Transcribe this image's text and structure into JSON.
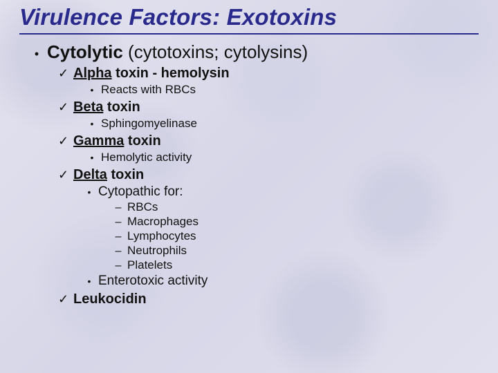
{
  "colors": {
    "title": "#2a2a8c",
    "underline": "#2a2a8c",
    "text": "#111111",
    "bg_base": "#e0e0ee"
  },
  "title": "Virulence Factors: Exotoxins",
  "l1": {
    "bullet": "•",
    "bold": "Cytolytic",
    "rest": " (cytotoxins; cytolysins)"
  },
  "check": "✓",
  "dot": "•",
  "dash": "–",
  "items": {
    "alpha": {
      "u": "Alpha",
      "rest": " toxin - hemolysin",
      "sub": "Reacts with RBCs"
    },
    "beta": {
      "u": "Beta",
      "rest": " toxin",
      "sub": "Sphingomyelinase"
    },
    "gamma": {
      "u": "Gamma",
      "rest": " toxin",
      "sub": "Hemolytic activity"
    },
    "delta": {
      "u": "Delta",
      "rest": " toxin",
      "cyto": "Cytopathic for:",
      "targets": {
        "a": "RBCs",
        "b": "Macrophages",
        "c": "Lymphocytes",
        "d": "Neutrophils",
        "e": "Platelets"
      },
      "entero": "Enterotoxic activity"
    },
    "leuko": "Leukocidin"
  }
}
